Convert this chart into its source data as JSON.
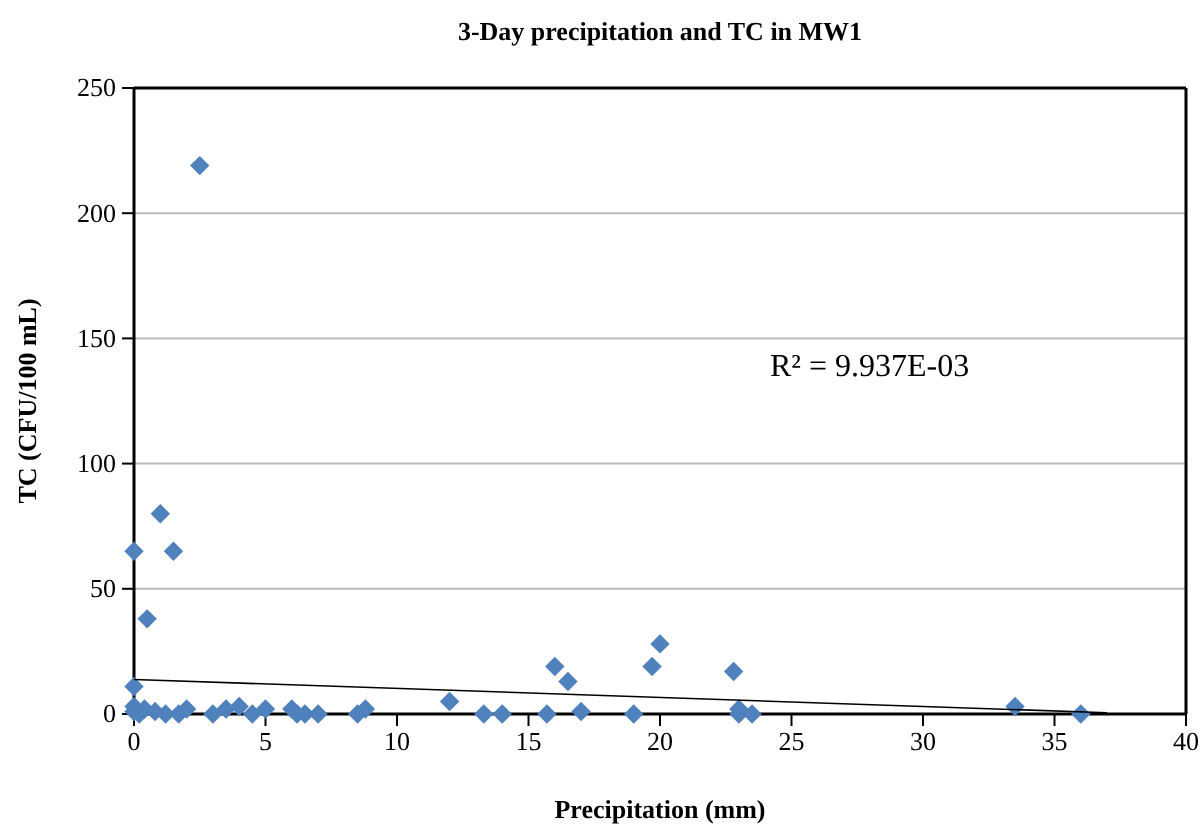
{
  "chart_data": {
    "type": "scatter",
    "title": "3-Day precipitation and TC in MW1",
    "xlabel": "Precipitation (mm)",
    "ylabel": "TC (CFU/100 mL)",
    "xlim": [
      0,
      40
    ],
    "xticks": [
      0,
      5,
      10,
      15,
      20,
      25,
      30,
      35,
      40
    ],
    "ylim": [
      0,
      250
    ],
    "yticks": [
      0,
      50,
      100,
      150,
      200,
      250
    ],
    "grid": "y",
    "marker": "diamond",
    "annotations": [
      "R² = 9.937E-03"
    ],
    "series": [
      {
        "color": "#4f81bd",
        "x": [
          0,
          0,
          0,
          0,
          0.2,
          0.5,
          0.4,
          0.8,
          1,
          1.5,
          1.2,
          1.7,
          2,
          2.5,
          3,
          3.5,
          4,
          4.5,
          5,
          6,
          6.2,
          6.5,
          7,
          8.5,
          8.8,
          12,
          13.3,
          14,
          15.7,
          16,
          16.5,
          17,
          19,
          19.7,
          20,
          22.8,
          23,
          23,
          23.5,
          33.5,
          36
        ],
        "values": [
          65,
          11,
          3,
          1,
          0,
          38,
          2,
          1,
          80,
          65,
          0,
          0,
          2,
          219,
          0,
          2,
          3,
          0,
          2,
          2,
          0,
          0,
          0,
          0,
          2,
          5,
          0,
          0,
          0,
          19,
          13,
          1,
          0,
          19,
          28,
          17,
          2,
          0,
          0,
          3,
          0
        ]
      },
      {
        "type": "line",
        "color": "#000000",
        "marker": "none",
        "x": [
          0,
          37
        ],
        "values": [
          13.8,
          0.5
        ]
      }
    ]
  }
}
